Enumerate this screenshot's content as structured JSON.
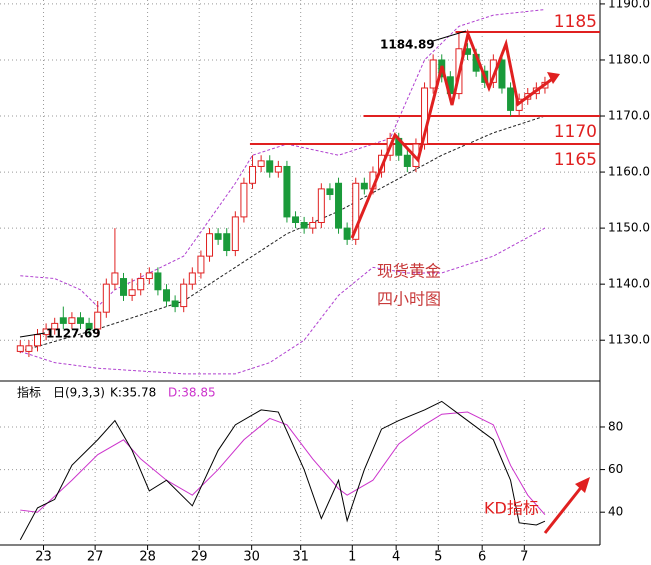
{
  "chart_data": {
    "type": "candlestick",
    "xlim": [
      -0.5,
      67.4
    ],
    "ylim": [
      1122.9,
      1190.7
    ],
    "yticks": [
      {
        "value": 1130,
        "label": "1130.0"
      },
      {
        "value": 1140,
        "label": "1140.0"
      },
      {
        "value": 1150,
        "label": "1150.0"
      },
      {
        "value": 1160,
        "label": "1160.0"
      },
      {
        "value": 1170,
        "label": "1170.0"
      },
      {
        "value": 1180,
        "label": "1180.0"
      },
      {
        "value": 1190,
        "label": "1190.0"
      }
    ],
    "grid": true,
    "up_color": "#e02020",
    "down_color": "#1a9a3a",
    "open": [
      1128,
      1128,
      1129,
      1131,
      1132,
      1134,
      1133,
      1134,
      1133,
      1132,
      1135,
      1140,
      1141,
      1138,
      1139,
      1141,
      1142,
      1139,
      1137,
      1136,
      1140,
      1142,
      1145,
      1149,
      1149,
      1146,
      1152,
      1158,
      1161,
      1162,
      1160,
      1161,
      1152,
      1151,
      1150,
      1151,
      1157,
      1158,
      1150,
      1148,
      1158,
      1157,
      1160,
      1163,
      1166,
      1163,
      1161,
      1165,
      1175,
      1180,
      1177,
      1174,
      1182,
      1181,
      1178,
      1176,
      1180,
      1175,
      1171,
      1173,
      1174,
      1175
    ],
    "high": [
      1130,
      1130,
      1132,
      1133,
      1134,
      1136,
      1135,
      1135,
      1134,
      1137,
      1141,
      1150,
      1142,
      1141,
      1142,
      1143,
      1143,
      1140,
      1138,
      1141,
      1143,
      1146,
      1150,
      1150,
      1150,
      1153,
      1159,
      1163,
      1163,
      1163,
      1162,
      1162,
      1153,
      1152,
      1152,
      1158,
      1158,
      1159,
      1151,
      1159,
      1159,
      1161,
      1164,
      1167,
      1167,
      1164,
      1166,
      1176,
      1181,
      1181,
      1178,
      1184.89,
      1183,
      1182,
      1179,
      1181,
      1181,
      1176,
      1174,
      1175,
      1176,
      1177
    ],
    "low": [
      1127.69,
      1127,
      1128,
      1130,
      1131,
      1132,
      1132,
      1132,
      1131,
      1131,
      1134,
      1139,
      1137,
      1137,
      1138,
      1140,
      1138,
      1136,
      1135,
      1135,
      1139,
      1141,
      1144,
      1147,
      1145,
      1145,
      1151,
      1157,
      1160,
      1159,
      1159,
      1151,
      1150,
      1149,
      1149,
      1150,
      1155,
      1149,
      1147,
      1147,
      1156,
      1156,
      1159,
      1162,
      1162,
      1160,
      1160,
      1164,
      1174,
      1176,
      1173,
      1173,
      1180,
      1177,
      1175,
      1175,
      1174,
      1170,
      1170,
      1172,
      1173,
      1174
    ],
    "close": [
      1129,
      1129,
      1131,
      1132,
      1133,
      1133,
      1134,
      1133,
      1132,
      1135,
      1140,
      1142,
      1138,
      1139,
      1141,
      1142,
      1139,
      1137,
      1136,
      1140,
      1142,
      1145,
      1149,
      1148,
      1146,
      1152,
      1158,
      1161,
      1162,
      1160,
      1161,
      1152,
      1151,
      1150,
      1151,
      1157,
      1156,
      1150,
      1148,
      1158,
      1157,
      1160,
      1163,
      1166,
      1163,
      1161,
      1165,
      1175,
      1180,
      1177,
      1174,
      1182,
      1181,
      1178,
      1176,
      1180,
      1175,
      1171,
      1173,
      1174,
      1175,
      1176
    ],
    "overlays": [
      {
        "x": [
          0,
          4,
          7,
          9,
          11,
          19,
          25,
          27,
          31,
          37,
          43,
          47,
          51,
          55,
          61
        ],
        "values": [
          1141.5,
          1141,
          1139,
          1136,
          1139,
          1145,
          1158,
          1163,
          1165,
          1163,
          1166,
          1180,
          1186,
          1188,
          1189
        ],
        "color": "#b040d0"
      },
      {
        "x": [
          0,
          9,
          19,
          25,
          31,
          37,
          43,
          49,
          55,
          61
        ],
        "values": [
          1128,
          1132,
          1137,
          1143,
          1149,
          1153,
          1158,
          1163,
          1167,
          1170
        ],
        "color": "#222222"
      },
      {
        "x": [
          0,
          4,
          9,
          19,
          25,
          29,
          33,
          37,
          41,
          45,
          49,
          55,
          61
        ],
        "values": [
          1128,
          1126,
          1125,
          1124,
          1124,
          1126,
          1130,
          1138,
          1143,
          1142,
          1142,
          1145,
          1150
        ],
        "color": "#b040d0"
      }
    ],
    "levels": [
      {
        "value": 1185,
        "from": 50.6
      },
      {
        "value": 1170,
        "from": 39.9
      },
      {
        "value": 1165,
        "from": 26.7
      }
    ],
    "level_color": "#e02020",
    "x_axis": {
      "positions": [
        2.7,
        8.7,
        14.8,
        20.8,
        26.9,
        32.6,
        38.6,
        43.7,
        48.6,
        53.7,
        58.6
      ],
      "labels": [
        "23",
        "27",
        "28",
        "29",
        "30",
        "31",
        "1",
        "4",
        "5",
        "6",
        "7"
      ]
    },
    "notes": [
      "现货黄金",
      "四小时图"
    ],
    "kd": {
      "title": "指标",
      "params": "日(9,3,3)",
      "k_label": "K:35.78",
      "d_label": "D:38.85",
      "ylim": [
        24.6,
        93.6
      ],
      "yticks": [
        40,
        60,
        80
      ],
      "note": "KD指标",
      "k": {
        "x": [
          0,
          2,
          4,
          6,
          9,
          11,
          13,
          15,
          17,
          20,
          23,
          25,
          28,
          30,
          33,
          35,
          37,
          38,
          40,
          42,
          44,
          47,
          49,
          51,
          52,
          55,
          57,
          58,
          60,
          61
        ],
        "values": [
          27,
          42,
          46,
          62,
          74,
          83,
          69,
          50,
          55,
          43,
          69,
          81,
          88,
          87,
          60,
          37,
          55,
          36,
          60,
          79,
          83,
          88,
          92,
          86,
          83,
          74,
          55,
          35,
          34,
          35.78
        ],
        "color": "#000000"
      },
      "d": {
        "x": [
          0,
          2,
          6,
          9,
          12,
          14,
          17,
          20,
          23,
          26,
          29,
          31,
          34,
          37,
          38,
          41,
          44,
          47,
          49,
          52,
          55,
          57,
          59,
          61
        ],
        "values": [
          41,
          40,
          55,
          67,
          74,
          65,
          55,
          48,
          60,
          74,
          84,
          81,
          65,
          51,
          48,
          55,
          72,
          81,
          86,
          87,
          81,
          62,
          48,
          38.85
        ],
        "color": "#cc33cc"
      }
    }
  }
}
